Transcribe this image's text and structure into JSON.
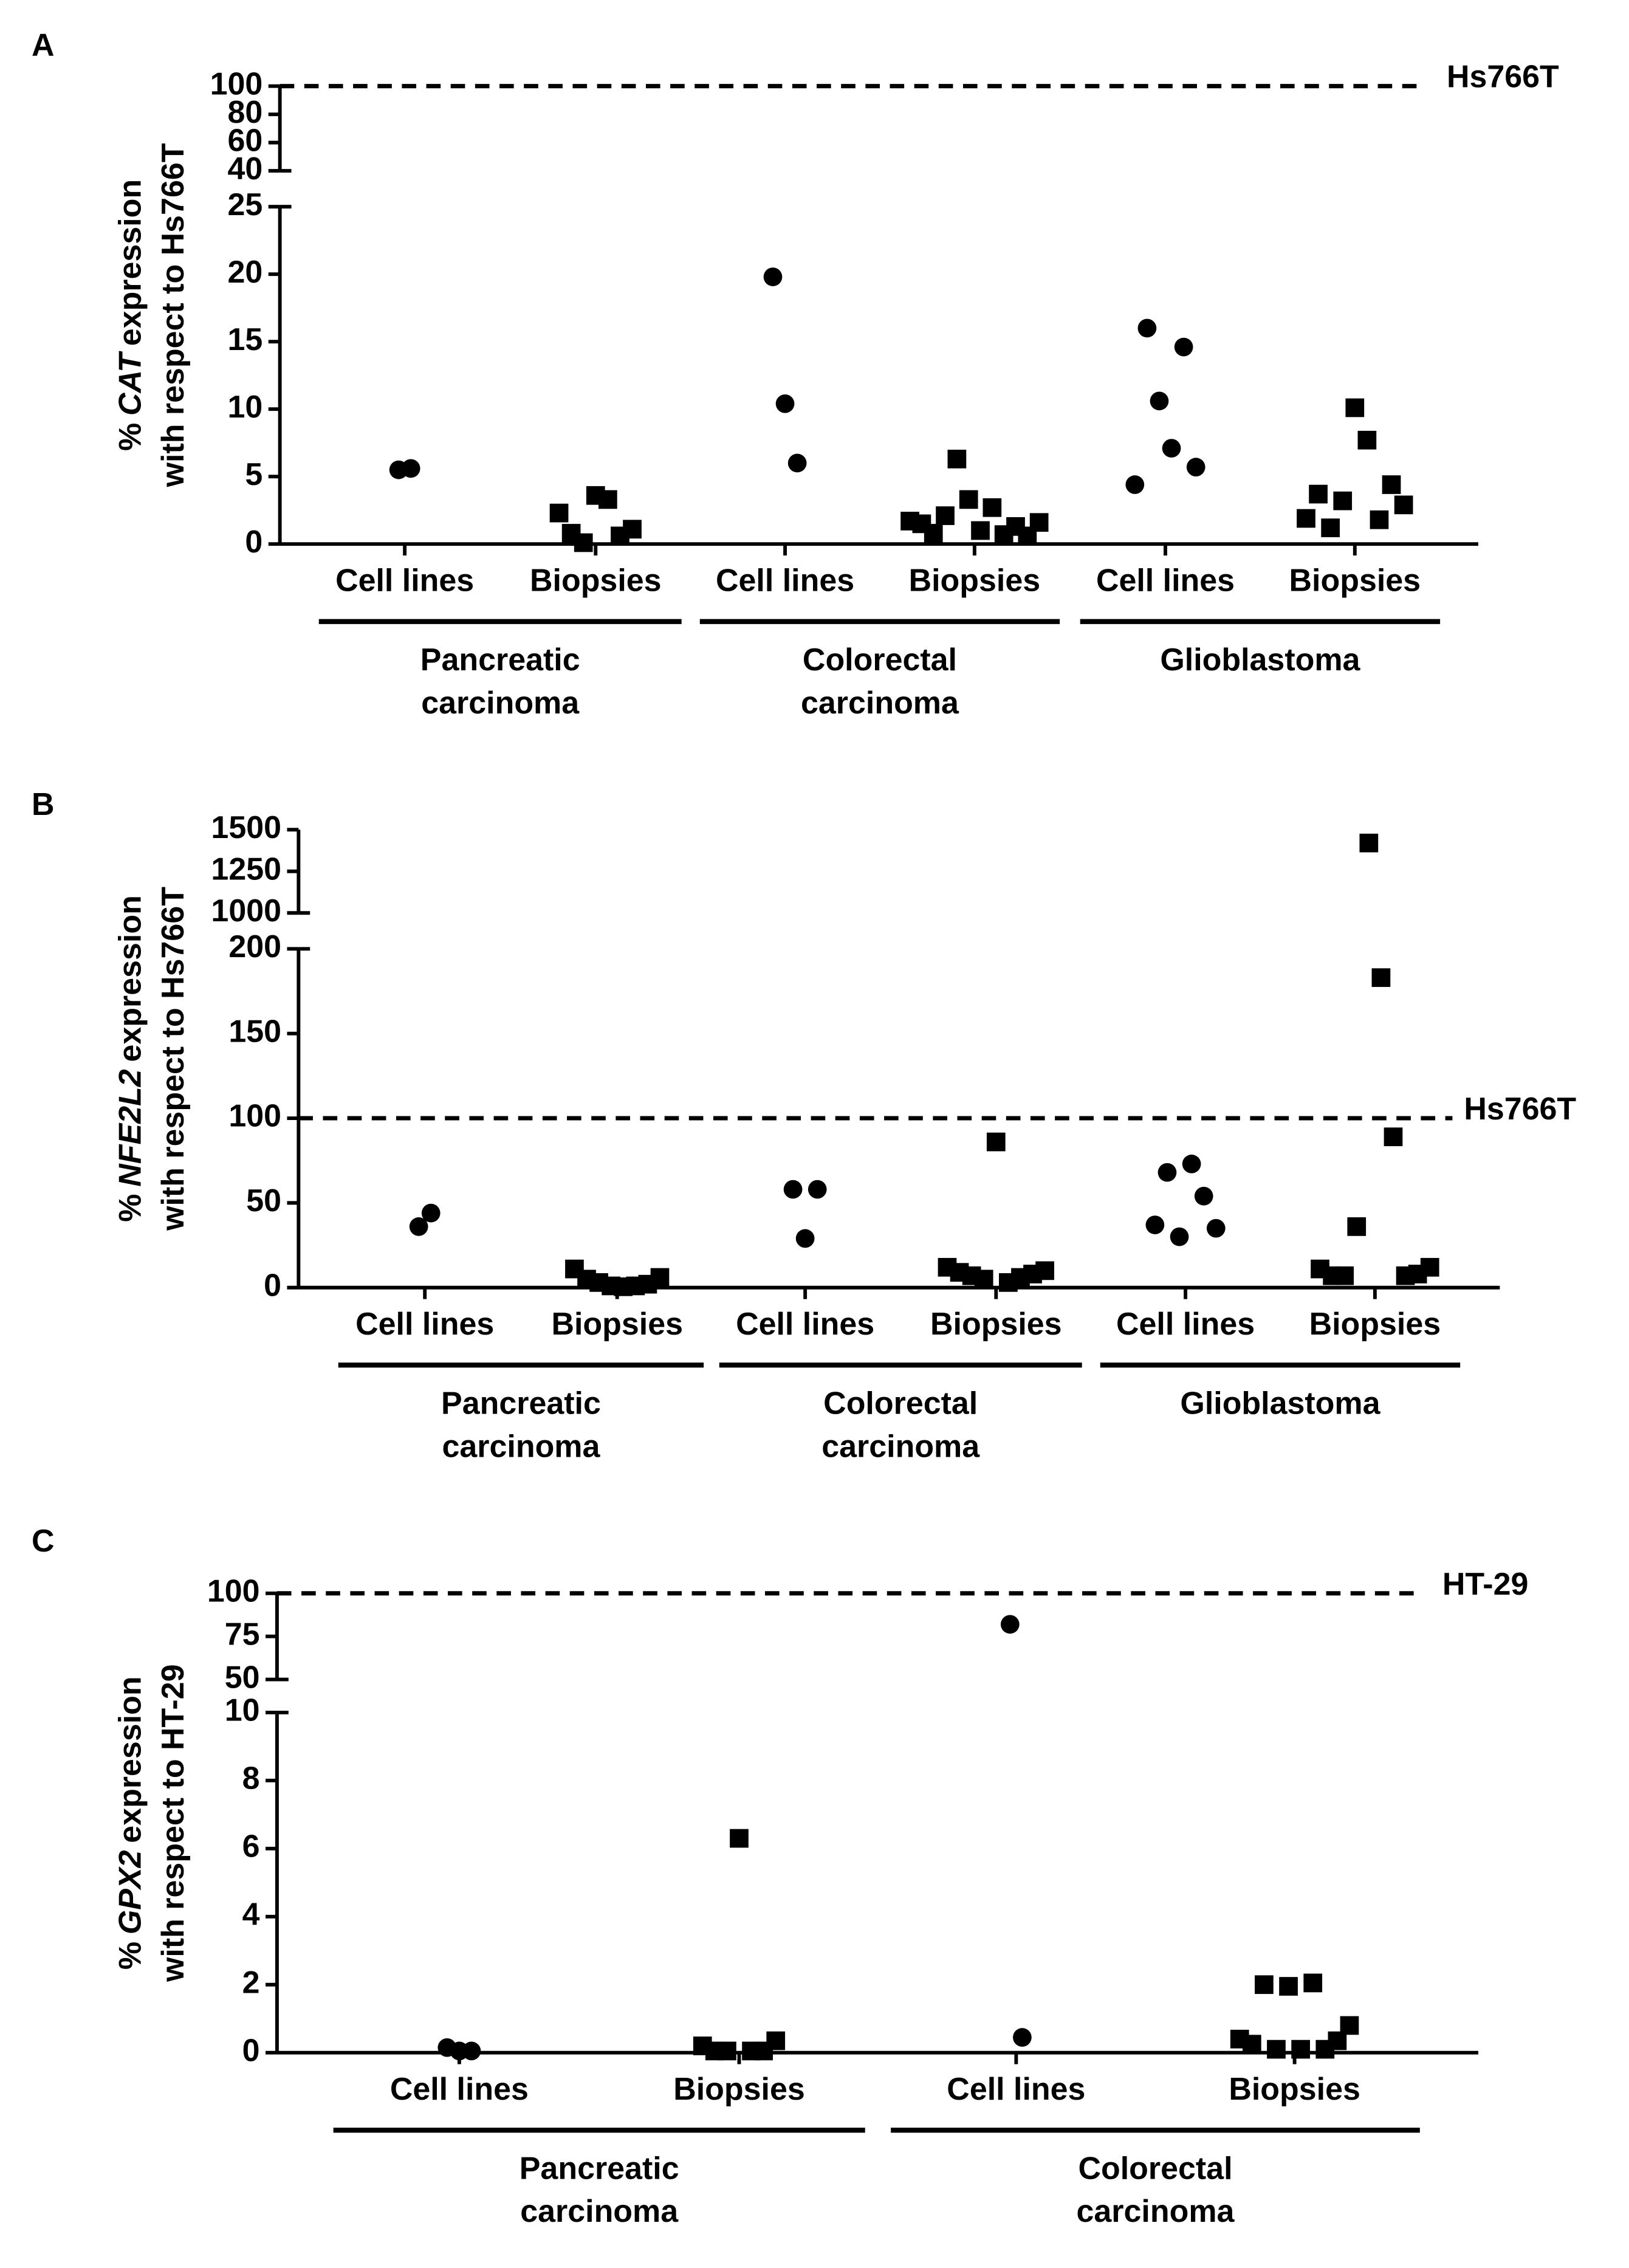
{
  "chart_data": [
    {
      "type": "dot",
      "panel": "A",
      "ylabel": [
        "%",
        "CAT",
        "expression",
        "with respect to Hs766T"
      ],
      "categories": [
        "Cell lines",
        "Biopsies",
        "Cell lines",
        "Biopsies",
        "Cell lines",
        "Biopsies"
      ],
      "markers": [
        "circle",
        "square",
        "circle",
        "square",
        "circle",
        "square"
      ],
      "groups": [
        "Pancreatic carcinoma",
        "Colorectal carcinoma",
        "Glioblastoma"
      ],
      "values": [
        [
          5.5,
          5.6
        ],
        [
          2.3,
          0.8,
          0.1,
          3.6,
          3.3,
          0.6,
          1.1
        ],
        [
          19.8,
          10.4,
          6.0
        ],
        [
          1.7,
          1.5,
          0.8,
          2.1,
          6.3,
          3.3,
          1.0,
          2.7,
          0.7,
          1.3,
          0.6,
          1.6
        ],
        [
          4.4,
          16.0,
          10.6,
          7.1,
          14.6,
          5.7
        ],
        [
          1.9,
          3.7,
          1.2,
          3.2,
          10.1,
          7.7,
          1.8,
          4.4,
          2.9
        ]
      ],
      "ylim": [
        0,
        25
      ],
      "yticks": [
        0,
        5,
        10,
        15,
        20,
        25
      ],
      "ylim_upper": [
        40,
        100
      ],
      "yticks_upper": [
        40,
        60,
        80,
        100
      ],
      "reference": {
        "value": 100,
        "label": "Hs766T"
      }
    },
    {
      "type": "dot",
      "panel": "B",
      "ylabel": [
        "%",
        "NFE2L2",
        "expression",
        "with respect to Hs766T"
      ],
      "categories": [
        "Cell lines",
        "Biopsies",
        "Cell lines",
        "Biopsies",
        "Cell lines",
        "Biopsies"
      ],
      "markers": [
        "circle",
        "square",
        "circle",
        "square",
        "circle",
        "square"
      ],
      "groups": [
        "Pancreatic carcinoma",
        "Colorectal carcinoma",
        "Glioblastoma"
      ],
      "values": [
        [
          36,
          44
        ],
        [
          11,
          5,
          3,
          1,
          0.5,
          1,
          2,
          6
        ],
        [
          58,
          29,
          58
        ],
        [
          12,
          9,
          7,
          5,
          86,
          3,
          6,
          8,
          10
        ],
        [
          37,
          68,
          30,
          73,
          54,
          35
        ],
        [
          11,
          7,
          7,
          36,
          1420,
          183,
          89,
          7,
          8,
          12
        ]
      ],
      "ylim": [
        0,
        200
      ],
      "yticks": [
        0,
        50,
        100,
        150,
        200
      ],
      "ylim_upper": [
        1000,
        1500
      ],
      "yticks_upper": [
        1000,
        1250,
        1500
      ],
      "reference": {
        "value": 100,
        "label": "Hs766T"
      }
    },
    {
      "type": "dot",
      "panel": "C",
      "ylabel": [
        "%",
        "GPX2",
        "expression",
        "with respect to HT-29"
      ],
      "categories": [
        "Cell lines",
        "Biopsies",
        "Cell lines",
        "Biopsies"
      ],
      "markers": [
        "circle",
        "square",
        "circle",
        "square"
      ],
      "groups": [
        "Pancreatic carcinoma",
        "Colorectal carcinoma"
      ],
      "values": [
        [
          0.15,
          0.05,
          0.05
        ],
        [
          0.2,
          0.05,
          0.05,
          6.3,
          0.05,
          0.05,
          0.35
        ],
        [
          82,
          0.45
        ],
        [
          0.4,
          0.25,
          2.0,
          0.1,
          1.95,
          0.1,
          2.05,
          0.1,
          0.35,
          0.8
        ]
      ],
      "ylim": [
        0,
        10
      ],
      "yticks": [
        0,
        2,
        4,
        6,
        8,
        10
      ],
      "ylim_upper": [
        50,
        100
      ],
      "yticks_upper": [
        50,
        75,
        100
      ],
      "reference": {
        "value": 100,
        "label": "HT-29"
      }
    }
  ]
}
